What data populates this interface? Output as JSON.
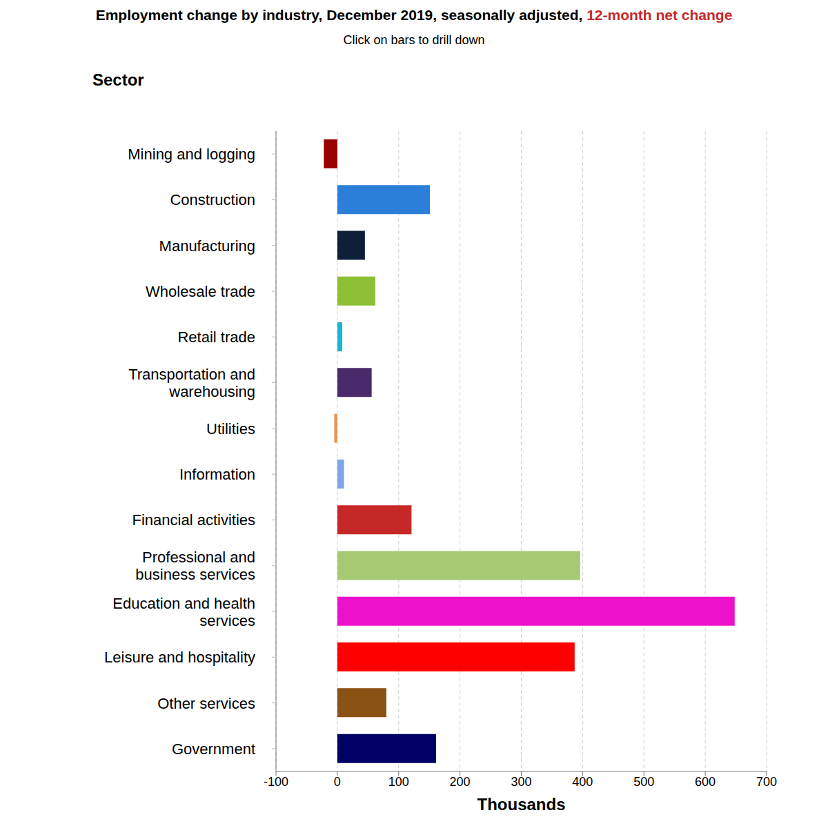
{
  "chart_data": {
    "type": "bar",
    "orientation": "horizontal",
    "title": "Employment change by industry, December 2019, seasonally adjusted, 12-month net change",
    "subtitle": "Click on bars to drill down",
    "xlabel": "Thousands",
    "ylabel": "Sector",
    "categories": [
      "Mining and logging",
      "Construction",
      "Manufacturing",
      "Wholesale trade",
      "Retail trade",
      "Transportation and warehousing",
      "Utilities",
      "Information",
      "Financial activities",
      "Professional and business services",
      "Education and health services",
      "Leisure and hospitality",
      "Other services",
      "Government"
    ],
    "values": [
      -22,
      151,
      45,
      62,
      8,
      56,
      -5,
      11,
      121,
      396,
      648,
      387,
      80,
      161
    ],
    "colors": [
      "#990000",
      "#2b7fd9",
      "#0d2038",
      "#8cbf34",
      "#17b5d6",
      "#4a2a6b",
      "#f0924a",
      "#7ea6e8",
      "#c62828",
      "#a6ca74",
      "#ee11cc",
      "#ff0000",
      "#8b5215",
      "#000066"
    ],
    "xlim": [
      -100,
      700
    ],
    "xticks": [
      -100,
      0,
      100,
      200,
      300,
      400,
      500,
      600,
      700
    ],
    "grid": true
  }
}
